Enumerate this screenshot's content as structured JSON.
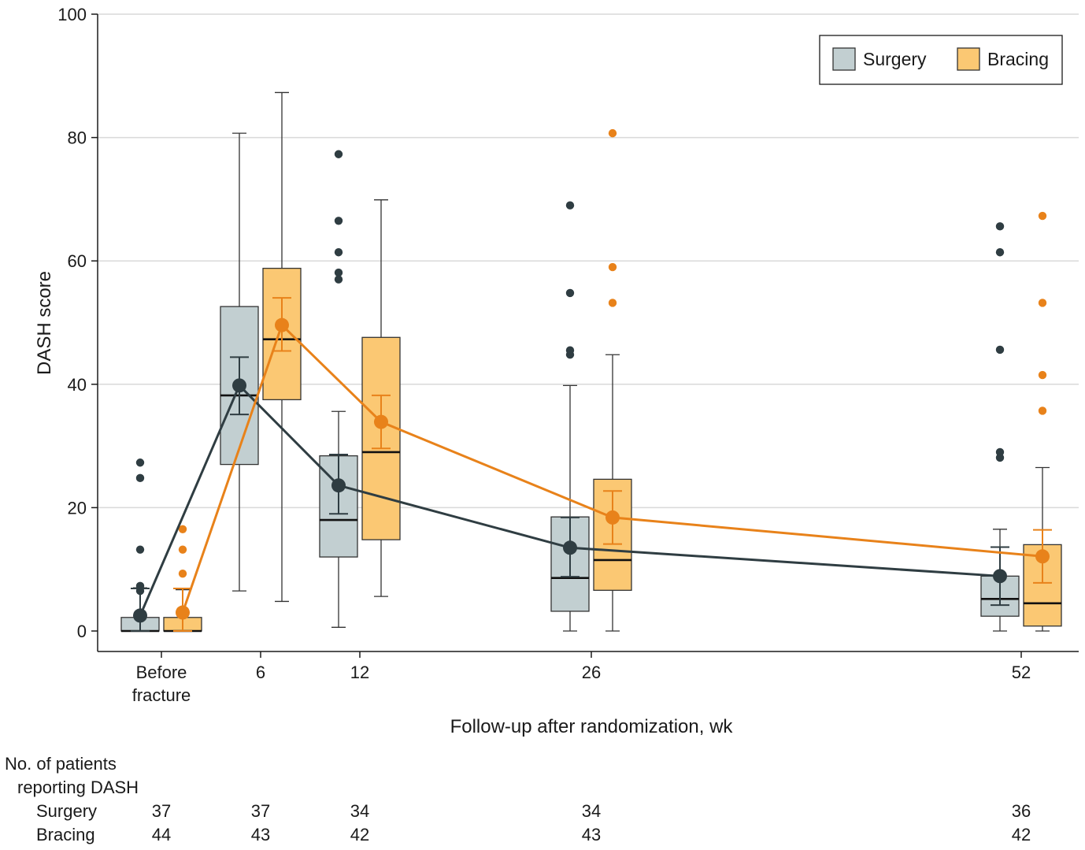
{
  "chart_data": {
    "type": "box",
    "title": "",
    "ylabel": "DASH score",
    "xlabel": "Follow-up after randomization, wk",
    "ylim": [
      0,
      100
    ],
    "yticks": [
      0,
      20,
      40,
      60,
      80,
      100
    ],
    "grid": true,
    "legend_position": "top-right",
    "timepoints": [
      {
        "key": "before",
        "label_lines": [
          "Before",
          "fracture"
        ]
      },
      {
        "key": "w6",
        "label_lines": [
          "6"
        ]
      },
      {
        "key": "w12",
        "label_lines": [
          "12"
        ]
      },
      {
        "key": "w26",
        "label_lines": [
          "26"
        ]
      },
      {
        "key": "w52",
        "label_lines": [
          "52"
        ]
      }
    ],
    "series": [
      {
        "name": "Surgery",
        "box_color": "#c2cfd1",
        "line_color": "#2f3d42",
        "boxes": [
          {
            "whisker_low": 0,
            "q1": 0,
            "median": 0,
            "q3": 2.2,
            "whisker_high": 7.0,
            "outliers": [
              6.5,
              7.3,
              13.2,
              24.8,
              27.3
            ]
          },
          {
            "whisker_low": 6.5,
            "q1": 27,
            "median": 38.2,
            "q3": 52.6,
            "whisker_high": 80.7,
            "outliers": []
          },
          {
            "whisker_low": 0.6,
            "q1": 12,
            "median": 18,
            "q3": 28.4,
            "whisker_high": 35.6,
            "outliers": [
              57,
              58.1,
              61.4,
              66.5,
              77.3
            ]
          },
          {
            "whisker_low": 0,
            "q1": 3.2,
            "median": 8.6,
            "q3": 18.5,
            "whisker_high": 39.8,
            "outliers": [
              44.8,
              45.5,
              54.8,
              69
            ]
          },
          {
            "whisker_low": 0,
            "q1": 2.4,
            "median": 5.2,
            "q3": 8.9,
            "whisker_high": 16.5,
            "outliers": [
              28.1,
              29,
              45.6,
              61.4,
              65.6
            ]
          }
        ],
        "means": [
          {
            "mean": 2.5,
            "ci_low": 0,
            "ci_high": 6.9
          },
          {
            "mean": 39.8,
            "ci_low": 35.1,
            "ci_high": 44.4
          },
          {
            "mean": 23.6,
            "ci_low": 19,
            "ci_high": 28.6
          },
          {
            "mean": 13.5,
            "ci_low": 8.8,
            "ci_high": 18.4
          },
          {
            "mean": 8.9,
            "ci_low": 4.2,
            "ci_high": 13.6
          }
        ]
      },
      {
        "name": "Bracing",
        "box_color": "#fbc873",
        "line_color": "#e8821a",
        "boxes": [
          {
            "whisker_low": 0,
            "q1": 0,
            "median": 0,
            "q3": 2.2,
            "whisker_high": 6.7,
            "outliers": [
              9.3,
              13.2,
              16.5
            ]
          },
          {
            "whisker_low": 4.8,
            "q1": 37.5,
            "median": 47.3,
            "q3": 58.8,
            "whisker_high": 87.3,
            "outliers": []
          },
          {
            "whisker_low": 5.6,
            "q1": 14.8,
            "median": 29,
            "q3": 47.6,
            "whisker_high": 69.9,
            "outliers": []
          },
          {
            "whisker_low": 0,
            "q1": 6.6,
            "median": 11.5,
            "q3": 24.6,
            "whisker_high": 44.8,
            "outliers": [
              53.2,
              59,
              80.7
            ]
          },
          {
            "whisker_low": 0,
            "q1": 0.8,
            "median": 4.5,
            "q3": 14,
            "whisker_high": 26.5,
            "outliers": [
              35.7,
              41.5,
              53.2,
              67.3
            ]
          }
        ],
        "means": [
          {
            "mean": 3.0,
            "ci_low": 0,
            "ci_high": 6.9
          },
          {
            "mean": 49.6,
            "ci_low": 45.4,
            "ci_high": 54
          },
          {
            "mean": 33.9,
            "ci_low": 29.6,
            "ci_high": 38.2
          },
          {
            "mean": 18.4,
            "ci_low": 14.1,
            "ci_high": 22.7
          },
          {
            "mean": 12.1,
            "ci_low": 7.8,
            "ci_high": 16.4
          }
        ]
      }
    ],
    "patients_table": {
      "header_lines": [
        "No. of patients",
        "reporting DASH"
      ],
      "rows": [
        {
          "label": "Surgery",
          "values": [
            "37",
            "37",
            "34",
            "34",
            "36"
          ]
        },
        {
          "label": "Bracing",
          "values": [
            "44",
            "43",
            "42",
            "43",
            "42"
          ]
        }
      ]
    }
  }
}
